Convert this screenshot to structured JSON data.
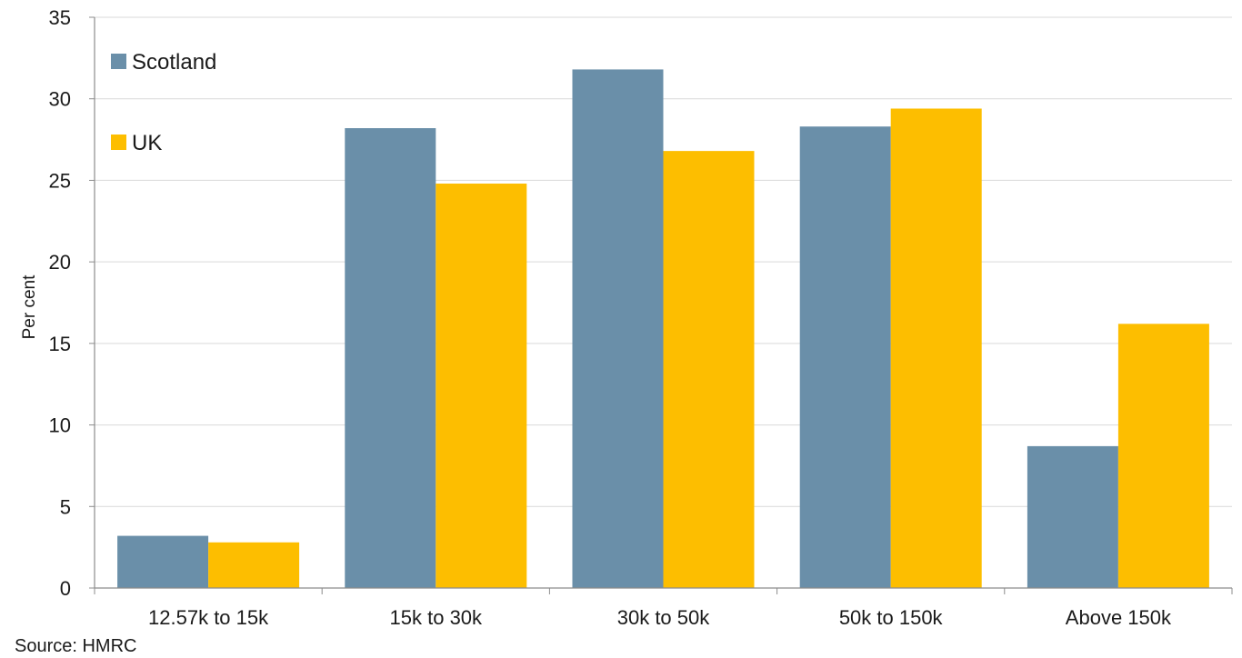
{
  "source": "Source: HMRC",
  "chart_data": {
    "type": "bar",
    "categories": [
      "12.57k to 15k",
      "15k to 30k",
      "30k to 50k",
      "50k to 150k",
      "Above 150k"
    ],
    "series": [
      {
        "name": "Scotland",
        "color": "#6a8fa9",
        "values": [
          3.2,
          28.2,
          31.8,
          28.3,
          8.7
        ]
      },
      {
        "name": "UK",
        "color": "#fdbe00",
        "values": [
          2.8,
          24.8,
          26.8,
          29.4,
          16.2
        ]
      }
    ],
    "title": "",
    "xlabel": "",
    "ylabel": "Per cent",
    "ylim": [
      0,
      35
    ],
    "yticks": [
      0,
      5,
      10,
      15,
      20,
      25,
      30,
      35
    ],
    "grid": true,
    "legend": "top-left"
  }
}
